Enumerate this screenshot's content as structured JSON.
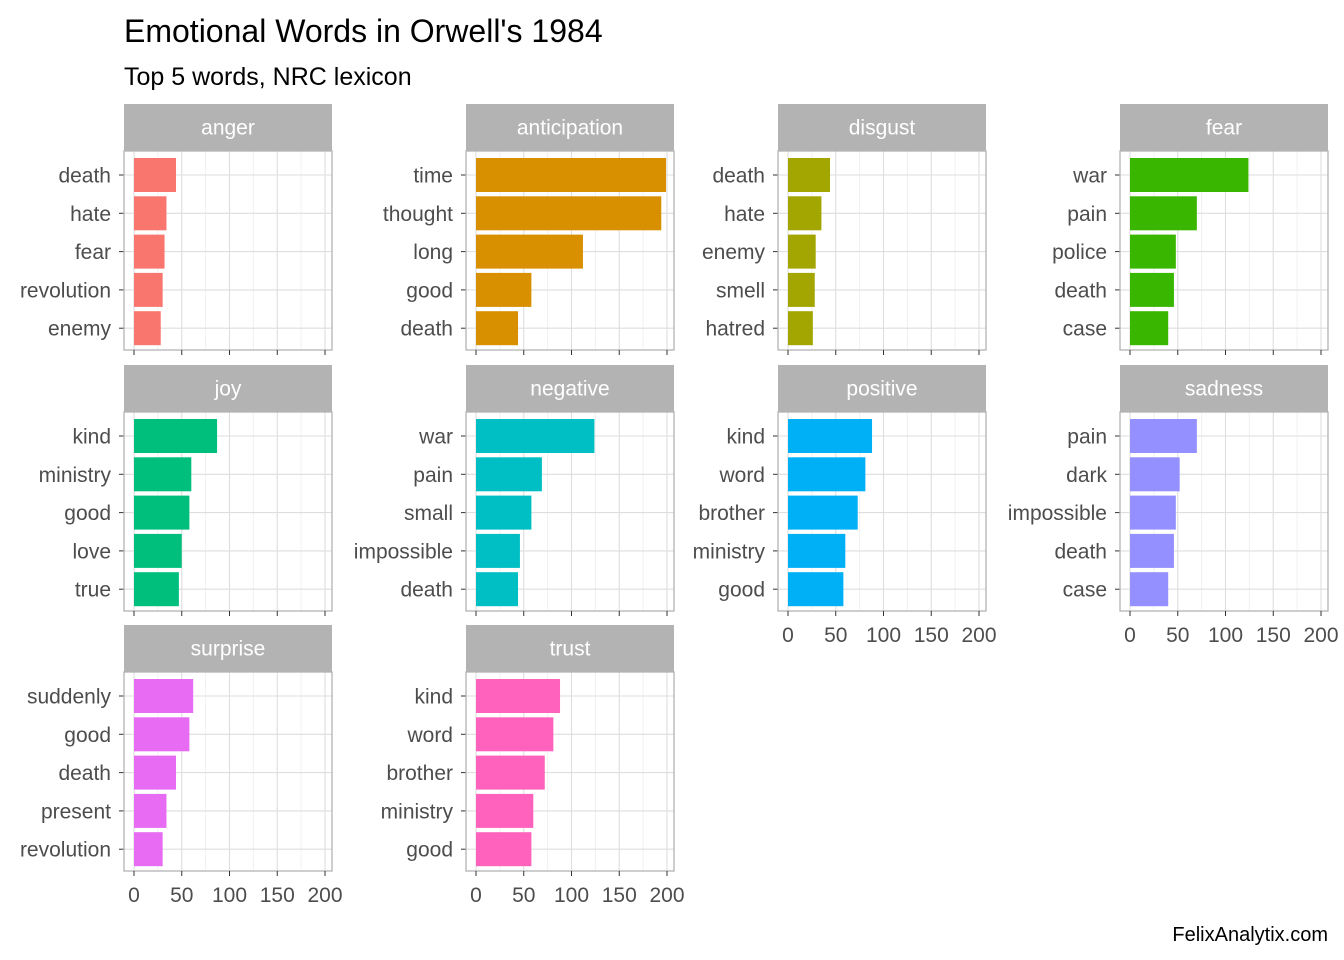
{
  "chart_data": {
    "type": "bar",
    "orientation": "horizontal",
    "title": "Emotional Words in Orwell's 1984",
    "subtitle": "Top 5 words, NRC lexicon",
    "caption": "FelixAnalytix.com",
    "xlim": [
      0,
      200
    ],
    "x_ticks": [
      "0",
      "50",
      "100",
      "150",
      "200"
    ],
    "grid": true,
    "legend": "none",
    "facets": [
      {
        "name": "anger",
        "color": "#F8766D",
        "categories": [
          "death",
          "hate",
          "fear",
          "revolution",
          "enemy"
        ],
        "values": [
          44,
          34,
          32,
          30,
          28
        ]
      },
      {
        "name": "anticipation",
        "color": "#D89000",
        "categories": [
          "time",
          "thought",
          "long",
          "good",
          "death"
        ],
        "values": [
          199,
          194,
          112,
          58,
          44
        ]
      },
      {
        "name": "disgust",
        "color": "#A3A500",
        "categories": [
          "death",
          "hate",
          "enemy",
          "smell",
          "hatred"
        ],
        "values": [
          44,
          35,
          29,
          28,
          26
        ]
      },
      {
        "name": "fear",
        "color": "#39B600",
        "categories": [
          "war",
          "pain",
          "police",
          "death",
          "case"
        ],
        "values": [
          124,
          70,
          48,
          46,
          40
        ]
      },
      {
        "name": "joy",
        "color": "#00BF7D",
        "categories": [
          "kind",
          "ministry",
          "good",
          "love",
          "true"
        ],
        "values": [
          87,
          60,
          58,
          50,
          47
        ]
      },
      {
        "name": "negative",
        "color": "#00BFC4",
        "categories": [
          "war",
          "pain",
          "small",
          "impossible",
          "death"
        ],
        "values": [
          124,
          69,
          58,
          46,
          44
        ]
      },
      {
        "name": "positive",
        "color": "#00B0F6",
        "categories": [
          "kind",
          "word",
          "brother",
          "ministry",
          "good"
        ],
        "values": [
          88,
          81,
          73,
          60,
          58
        ]
      },
      {
        "name": "sadness",
        "color": "#9590FF",
        "categories": [
          "pain",
          "dark",
          "impossible",
          "death",
          "case"
        ],
        "values": [
          70,
          52,
          48,
          46,
          40
        ]
      },
      {
        "name": "surprise",
        "color": "#E76BF3",
        "categories": [
          "suddenly",
          "good",
          "death",
          "present",
          "revolution"
        ],
        "values": [
          62,
          58,
          44,
          34,
          30
        ]
      },
      {
        "name": "trust",
        "color": "#FF62BC",
        "categories": [
          "kind",
          "word",
          "brother",
          "ministry",
          "good"
        ],
        "values": [
          88,
          81,
          72,
          60,
          58
        ]
      }
    ]
  },
  "colors": {
    "strip_background": "#b3b3b3",
    "panel_border": "#b3b3b3",
    "grid_major": "#dedede",
    "grid_minor": "#f0f0f0",
    "text": "#4d4d4d"
  }
}
